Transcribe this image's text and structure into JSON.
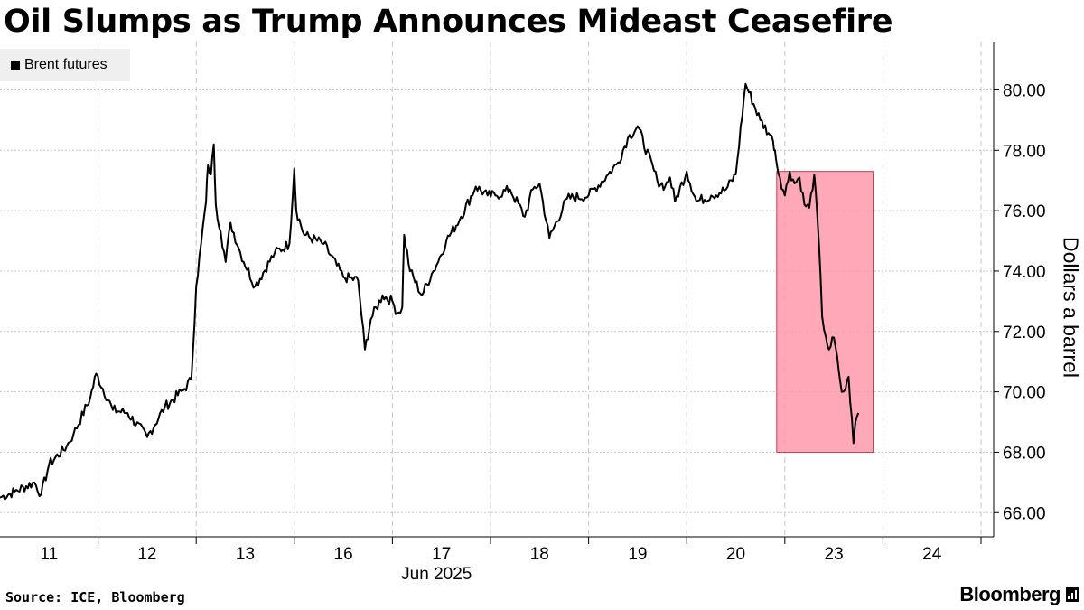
{
  "title": "Oil Slumps as Trump Announces Mideast Ceasefire",
  "source": "Source: ICE, Bloomberg",
  "brand": "Bloomberg",
  "chart_data": {
    "type": "line",
    "title": "Oil Slumps as Trump Announces Mideast Ceasefire",
    "ylabel": "Dollars a barrel",
    "xlabel": "Jun 2025",
    "ylim": [
      65.2,
      81.6
    ],
    "grid": true,
    "legend": "top-left",
    "y_ticks": [
      "66.00",
      "68.00",
      "70.00",
      "72.00",
      "74.00",
      "76.00",
      "78.00",
      "80.00"
    ],
    "x_ticks": [
      "11",
      "12",
      "13",
      "16",
      "17",
      "18",
      "19",
      "20",
      "23",
      "24"
    ],
    "x_sublabel": "Jun 2025",
    "highlight": {
      "x_start": 8.0,
      "x_end": 8.9,
      "y_low": 68.0,
      "y_high": 77.3,
      "color": "#ff9aab"
    },
    "series": [
      {
        "name": "Brent futures",
        "color": "#000000",
        "x": [
          0,
          0.15,
          0.35,
          0.42,
          0.5,
          0.68,
          0.75,
          0.92,
          0.98,
          1.15,
          1.3,
          1.5,
          1.68,
          1.88,
          1.95,
          2.0,
          2.05,
          2.1,
          2.12,
          2.15,
          2.18,
          2.2,
          2.25,
          2.3,
          2.35,
          2.45,
          2.6,
          2.8,
          2.95,
          3.0,
          3.02,
          3.1,
          3.3,
          3.5,
          3.65,
          3.72,
          3.78,
          3.9,
          4.0,
          4.05,
          4.1,
          4.12,
          4.18,
          4.3,
          4.4,
          4.45,
          4.55,
          4.7,
          4.85,
          4.97,
          5.05,
          5.2,
          5.35,
          5.43,
          5.5,
          5.6,
          5.78,
          6.0,
          6.2,
          6.3,
          6.4,
          6.5,
          6.7,
          6.78,
          6.83,
          6.88,
          7.0,
          7.1,
          7.25,
          7.4,
          7.5,
          7.6,
          7.75,
          7.85,
          7.88,
          7.9,
          7.92,
          7.95,
          8.0,
          8.05,
          8.1,
          8.15,
          8.2,
          8.25,
          8.3,
          8.35,
          8.38,
          8.42,
          8.45,
          8.5,
          8.55,
          8.58,
          8.62,
          8.65,
          8.7,
          8.72,
          8.75
        ],
        "y": [
          66.5,
          66.7,
          67.0,
          66.6,
          67.6,
          68.2,
          68.6,
          69.8,
          70.6,
          69.4,
          69.3,
          68.5,
          69.5,
          70.1,
          70.4,
          73.5,
          74.9,
          76.3,
          77.5,
          77.2,
          78.2,
          76.2,
          75.3,
          74.3,
          75.6,
          74.6,
          73.5,
          74.6,
          74.9,
          77.4,
          76.0,
          75.2,
          74.9,
          73.8,
          73.7,
          71.4,
          72.4,
          73.2,
          73.0,
          72.6,
          72.8,
          75.2,
          74.0,
          73.2,
          73.9,
          74.2,
          75.0,
          75.8,
          76.8,
          76.5,
          76.5,
          76.7,
          75.8,
          76.7,
          76.9,
          75.1,
          76.4,
          76.5,
          77.2,
          77.6,
          78.4,
          78.8,
          77.0,
          76.8,
          77.1,
          76.3,
          77.3,
          76.3,
          76.5,
          76.7,
          77.2,
          80.2,
          79.0,
          78.5,
          78.3,
          78.0,
          77.5,
          77.1,
          76.5,
          77.3,
          76.9,
          77.1,
          76.2,
          76.1,
          77.2,
          74.8,
          72.5,
          71.8,
          71.4,
          71.8,
          70.7,
          70.0,
          70.1,
          70.5,
          68.3,
          69.0,
          69.3
        ]
      }
    ]
  }
}
